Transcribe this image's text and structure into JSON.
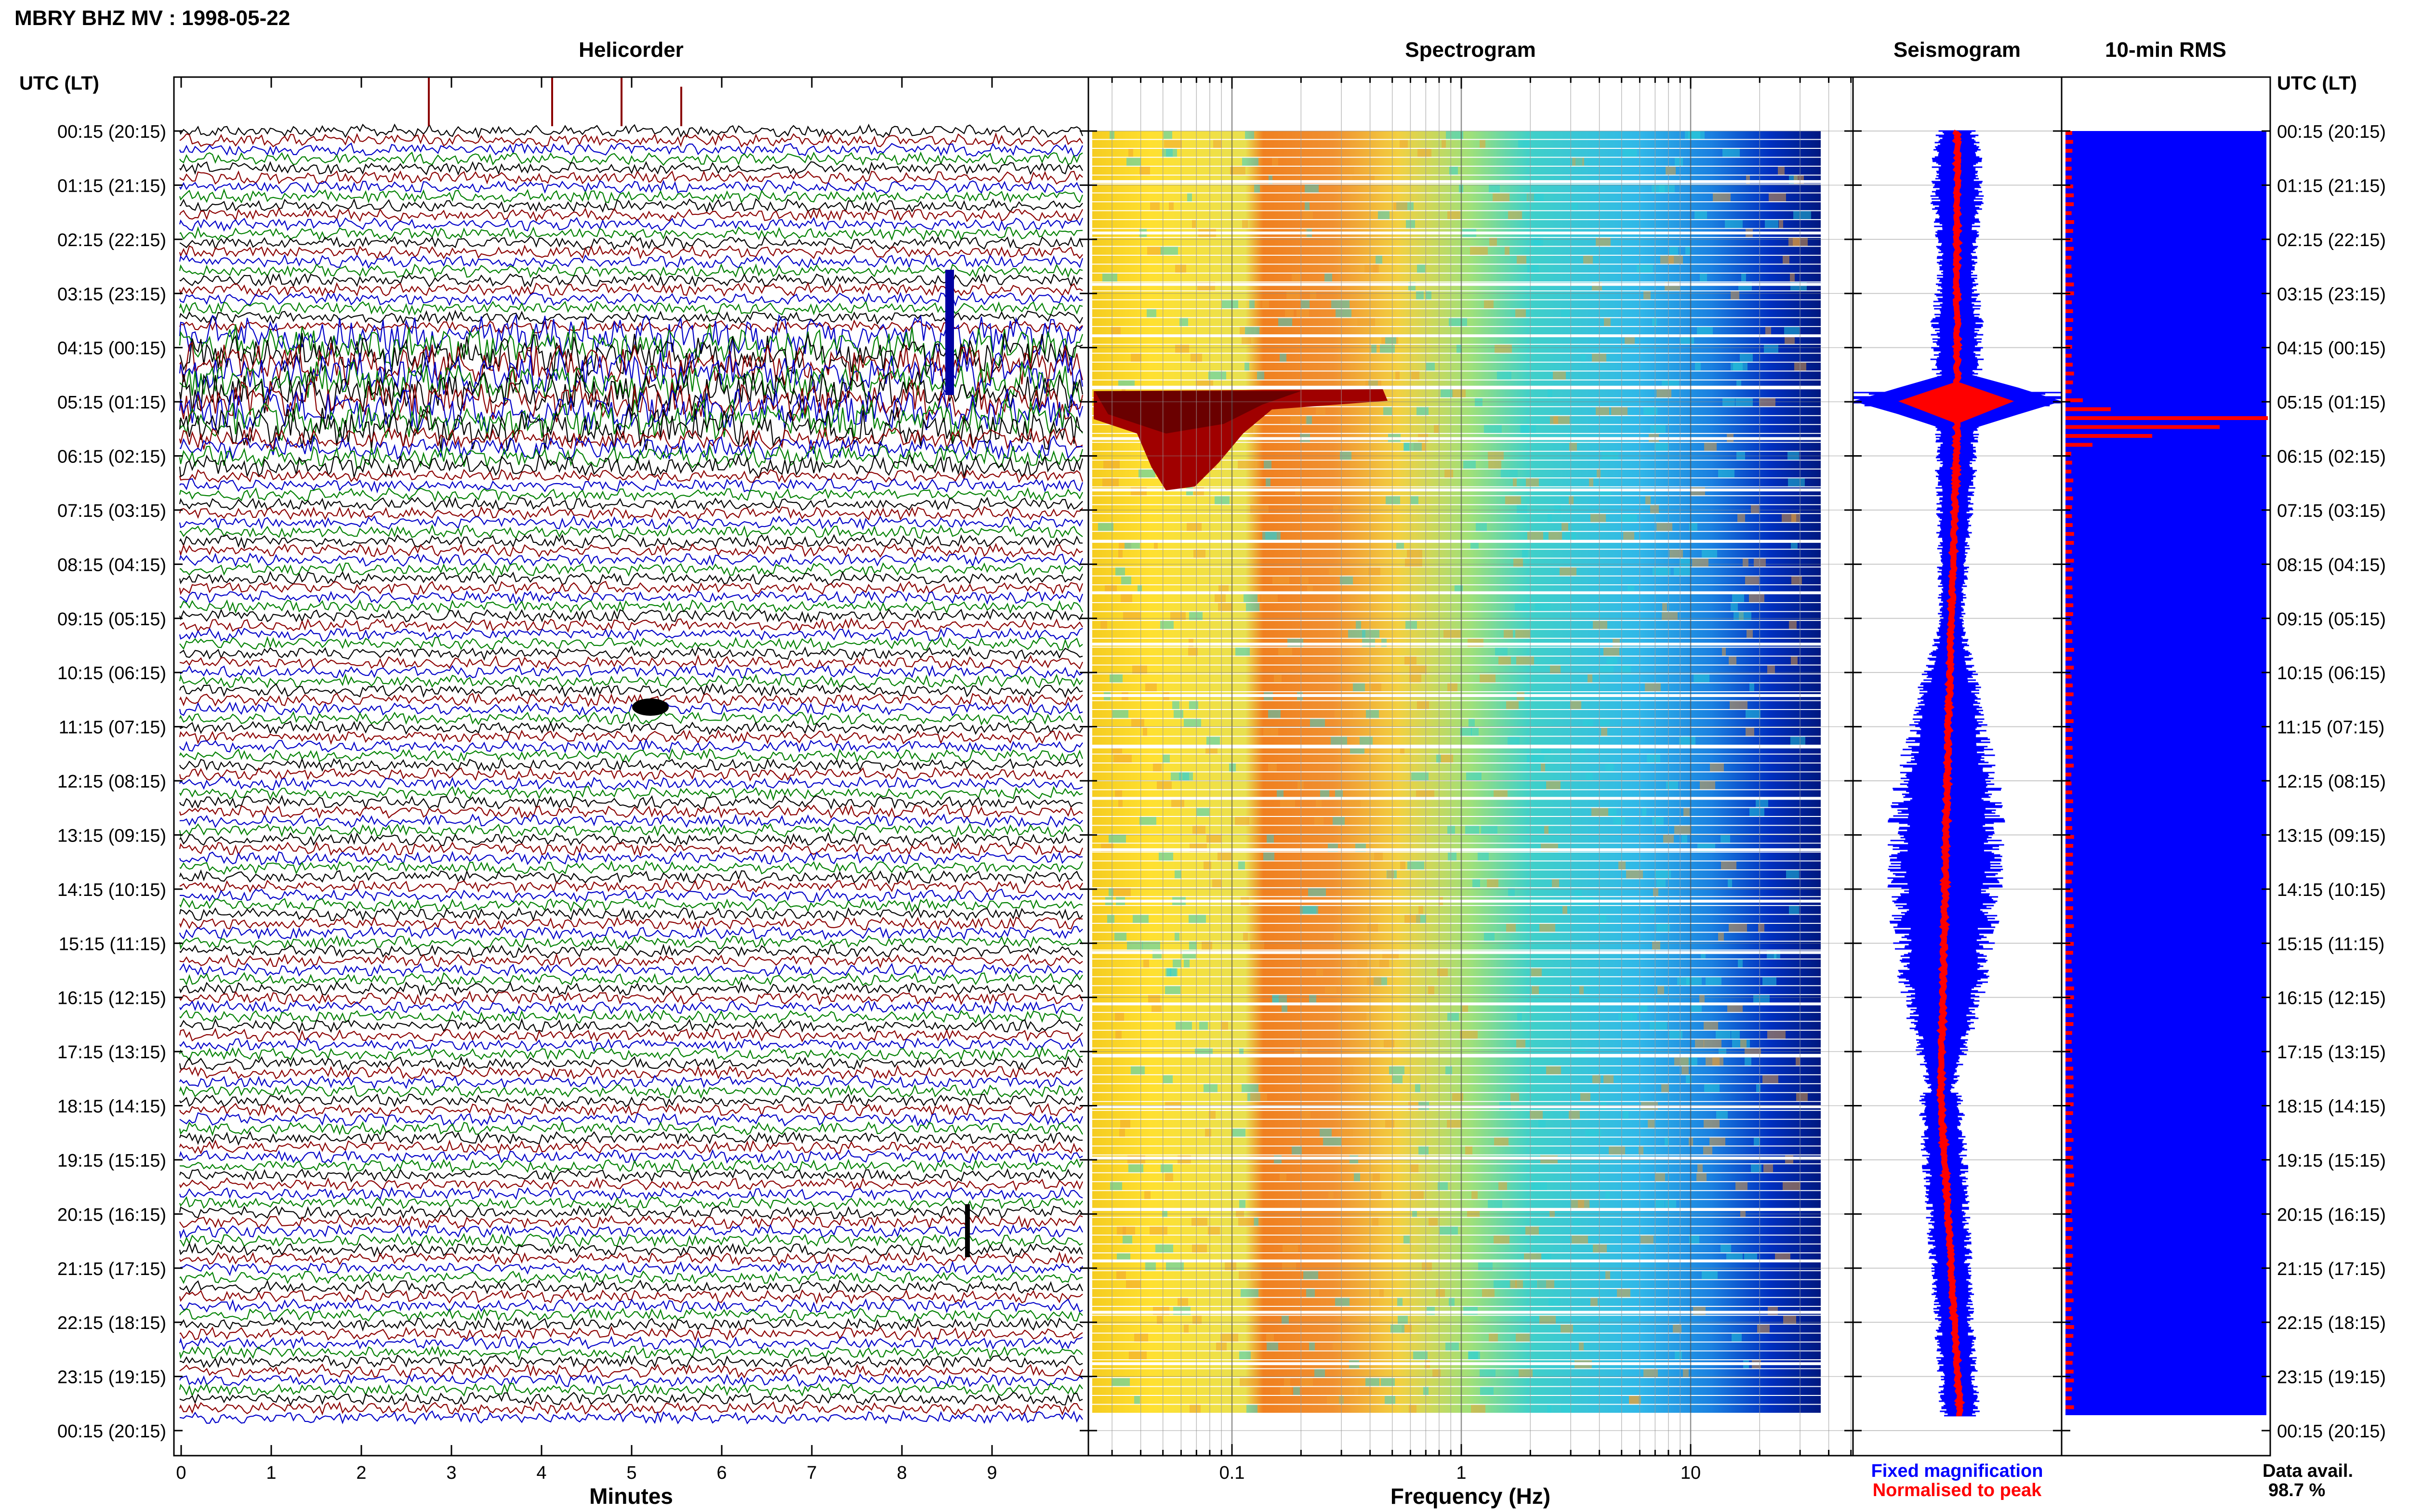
{
  "header": {
    "title": "MBRY BHZ MV : 1998-05-22",
    "utc_lt_label_left": "UTC (LT)",
    "utc_lt_label_right": "UTC (LT)"
  },
  "panels": {
    "helicorder": {
      "title": "Helicorder",
      "xlabel": "Minutes"
    },
    "spectrogram": {
      "title": "Spectrogram",
      "xlabel": "Frequency (Hz)"
    },
    "seismogram": {
      "title": "Seismogram"
    },
    "rms": {
      "title": "10-min RMS"
    }
  },
  "time_labels": [
    "00:15 (20:15)",
    "01:15 (21:15)",
    "02:15 (22:15)",
    "03:15 (23:15)",
    "04:15 (00:15)",
    "05:15 (01:15)",
    "06:15 (02:15)",
    "07:15 (03:15)",
    "08:15 (04:15)",
    "09:15 (05:15)",
    "10:15 (06:15)",
    "11:15 (07:15)",
    "12:15 (08:15)",
    "13:15 (09:15)",
    "14:15 (10:15)",
    "15:15 (11:15)",
    "16:15 (12:15)",
    "17:15 (13:15)",
    "18:15 (14:15)",
    "19:15 (15:15)",
    "20:15 (16:15)",
    "21:15 (17:15)",
    "22:15 (18:15)",
    "23:15 (19:15)",
    "00:15 (20:15)"
  ],
  "minute_ticks": [
    "0",
    "1",
    "2",
    "3",
    "4",
    "5",
    "6",
    "7",
    "8",
    "9"
  ],
  "freq_ticks": [
    "0.1",
    "1",
    "10"
  ],
  "legend": {
    "fixed_label": "Fixed magnification",
    "normalised_label": "Normalised to peak",
    "fixed_color": "#0000ff",
    "normalised_color": "#ff0000"
  },
  "availability": {
    "label": "Data avail.",
    "value": "98.7 %"
  },
  "colors": {
    "trace_cycle": [
      "#000000",
      "#8b0000",
      "#0000c8",
      "#008000"
    ],
    "seismogram_fixed": "#0000ff",
    "seismogram_norm": "#ff0000",
    "rms_fill": "#0000ff",
    "rms_bars": "#ff0000",
    "spectrum_low": "#f5d020",
    "spectrum_peak": "#e05a10",
    "spectrum_mid": "#30d0d0",
    "spectrum_high": "#0020a0"
  }
}
